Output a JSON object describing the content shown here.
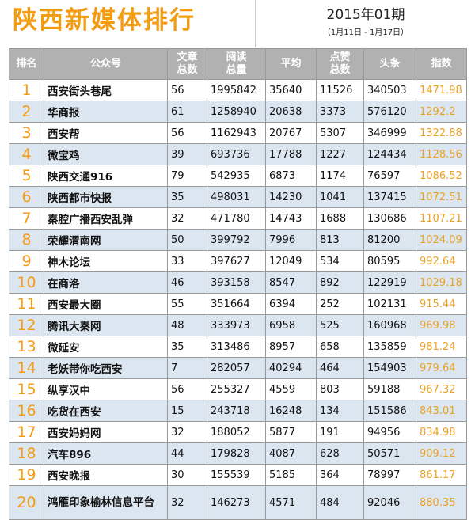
{
  "title": "陕西新媒体排行",
  "period": "2015年01期",
  "dates": "（1月11日 - 1月17日）",
  "colors": {
    "accent": "#f39c12",
    "header_bg": "#b1b1b1",
    "row_alt": "#dce6f1",
    "index_text": "#e9a227"
  },
  "chart_data": {
    "type": "table",
    "columns": [
      "排名",
      "公众号",
      "文章总数",
      "阅读总量",
      "平均",
      "点赞总数",
      "头条",
      "指数"
    ],
    "rows": [
      [
        "1",
        "西安街头巷尾",
        "56",
        "1995842",
        "35640",
        "11526",
        "340503",
        "1471.98"
      ],
      [
        "2",
        "华商报",
        "61",
        "1258940",
        "20638",
        "3373",
        "576120",
        "1292.2"
      ],
      [
        "3",
        "西安帮",
        "56",
        "1162943",
        "20767",
        "5307",
        "346999",
        "1322.88"
      ],
      [
        "4",
        "微宝鸡",
        "39",
        "693736",
        "17788",
        "1227",
        "124434",
        "1128.56"
      ],
      [
        "5",
        "陕西交通916",
        "79",
        "542935",
        "6873",
        "1174",
        "76597",
        "1086.52"
      ],
      [
        "6",
        "陕西都市快报",
        "35",
        "498031",
        "14230",
        "1041",
        "137415",
        "1072.51"
      ],
      [
        "7",
        "秦腔广播西安乱弹",
        "32",
        "471780",
        "14743",
        "1688",
        "130686",
        "1107.21"
      ],
      [
        "8",
        "荣耀渭南网",
        "50",
        "399792",
        "7996",
        "813",
        "81200",
        "1024.09"
      ],
      [
        "9",
        "神木论坛",
        "33",
        "397627",
        "12049",
        "534",
        "80595",
        "992.64"
      ],
      [
        "10",
        "在商洛",
        "46",
        "393158",
        "8547",
        "892",
        "122919",
        "1029.18"
      ],
      [
        "11",
        "西安最大圈",
        "55",
        "351664",
        "6394",
        "252",
        "102131",
        "915.44"
      ],
      [
        "12",
        "腾讯大秦网",
        "48",
        "333973",
        "6958",
        "525",
        "160968",
        "969.98"
      ],
      [
        "13",
        "微延安",
        "35",
        "313486",
        "8957",
        "658",
        "135859",
        "981.24"
      ],
      [
        "14",
        "老妖带你吃西安",
        "7",
        "282057",
        "40294",
        "464",
        "154903",
        "979.64"
      ],
      [
        "15",
        "纵享汉中",
        "56",
        "255327",
        "4559",
        "803",
        "59188",
        "967.32"
      ],
      [
        "16",
        "吃货在西安",
        "15",
        "243718",
        "16248",
        "134",
        "151586",
        "843.01"
      ],
      [
        "17",
        "西安妈妈网",
        "32",
        "188052",
        "5877",
        "191",
        "94956",
        "834.98"
      ],
      [
        "18",
        "汽车896",
        "44",
        "179828",
        "4087",
        "628",
        "50571",
        "909.12"
      ],
      [
        "19",
        "西安晚报",
        "30",
        "155539",
        "5185",
        "364",
        "78997",
        "861.17"
      ],
      [
        "20",
        "鸿雁印象榆林信息平台",
        "32",
        "146273",
        "4571",
        "484",
        "92046",
        "880.35"
      ]
    ]
  }
}
